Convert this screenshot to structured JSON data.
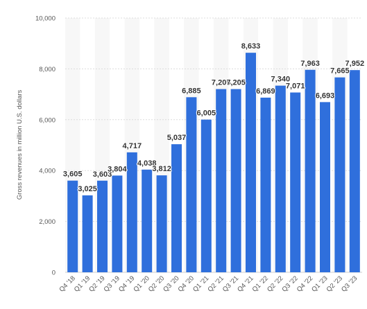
{
  "chart_data": {
    "type": "bar",
    "title": "",
    "xlabel": "",
    "ylabel": "Gross revenues in million U.S. dollars",
    "ylim": [
      0,
      10000
    ],
    "yticks": [
      0,
      2000,
      4000,
      6000,
      8000,
      10000
    ],
    "ytick_labels": [
      "0",
      "2,000",
      "4,000",
      "6,000",
      "8,000",
      "10,000"
    ],
    "grid": true,
    "bar_color": "#2f6fdc",
    "categories": [
      "Q4 '18",
      "Q1 '19",
      "Q2 '19",
      "Q3 '19",
      "Q4 '19",
      "Q1 '20",
      "Q2 '20",
      "Q3 '20",
      "Q4 '20",
      "Q1 '21",
      "Q2 '21",
      "Q3 '21",
      "Q4 '21",
      "Q1 '22",
      "Q2 '22",
      "Q3 '22",
      "Q4 '22",
      "Q1 '23",
      "Q2 '23",
      "Q3 '23"
    ],
    "values": [
      3605,
      3025,
      3603,
      3804,
      4717,
      4038,
      3812,
      5037,
      6885,
      6005,
      7205,
      7205,
      8633,
      6869,
      7340,
      7071,
      7963,
      6693,
      7665,
      7952
    ],
    "value_labels": [
      "3,605",
      "3,025",
      "3,603",
      "3,804",
      "4,717",
      "4,038",
      "3,812",
      "5,037",
      "6,885",
      "6,005",
      "7,205",
      "7,205",
      "8,633",
      "6,869",
      "7,340",
      "7,071",
      "7,963",
      "6,693",
      "7,665",
      "7,952"
    ]
  }
}
